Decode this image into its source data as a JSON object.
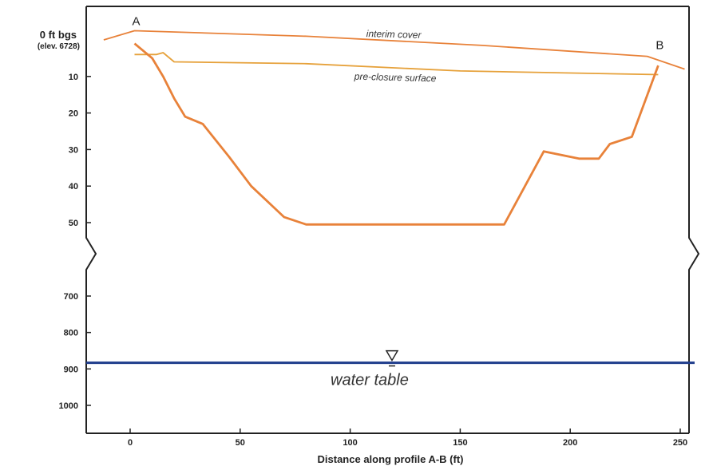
{
  "chart_data": {
    "type": "line",
    "title": "",
    "xlabel": "Distance along profile A-B (ft)",
    "ylabel": "",
    "x_range": [
      -20,
      252
    ],
    "x_ticks": [
      0,
      50,
      100,
      150,
      200,
      250
    ],
    "y_reversed": true,
    "y_upper_segment_ticks": [
      10,
      20,
      30,
      40,
      50
    ],
    "y_lower_segment_ticks": [
      700,
      800,
      900,
      1000
    ],
    "y_axis_break": true,
    "zero_label": "0 ft bgs",
    "elevation_label": "(elev. 6728)",
    "point_labels": [
      {
        "text": "A",
        "x": 2,
        "y": -4
      },
      {
        "text": "B",
        "x": 240,
        "y": 2.5
      }
    ],
    "series": [
      {
        "name": "interim cover",
        "color": "#e8823a",
        "points": [
          [
            -12,
            0
          ],
          [
            2,
            -2.5
          ],
          [
            80,
            -1
          ],
          [
            160,
            1.5
          ],
          [
            235,
            4.5
          ],
          [
            252,
            8
          ]
        ]
      },
      {
        "name": "pre-closure surface",
        "color": "#e6a13a",
        "points": [
          [
            2,
            4
          ],
          [
            12,
            4
          ],
          [
            15,
            3.5
          ],
          [
            20,
            6
          ],
          [
            80,
            6.5
          ],
          [
            150,
            8.5
          ],
          [
            240,
            9.5
          ]
        ]
      },
      {
        "name": "",
        "color": "#e8823a",
        "points": [
          [
            2,
            1
          ],
          [
            10,
            5
          ],
          [
            15,
            10
          ],
          [
            20,
            16
          ],
          [
            25,
            21
          ],
          [
            33,
            23
          ],
          [
            45,
            32
          ],
          [
            55,
            40
          ],
          [
            70,
            48.5
          ],
          [
            80,
            50.5
          ],
          [
            170,
            50.5
          ],
          [
            188,
            30.5
          ],
          [
            204,
            32.5
          ],
          [
            213,
            32.5
          ],
          [
            218,
            28.5
          ],
          [
            228,
            26.5
          ],
          [
            240,
            7
          ]
        ]
      }
    ],
    "water_table": {
      "label": "water table",
      "depth": 883,
      "color": "#1f3d8c"
    }
  }
}
